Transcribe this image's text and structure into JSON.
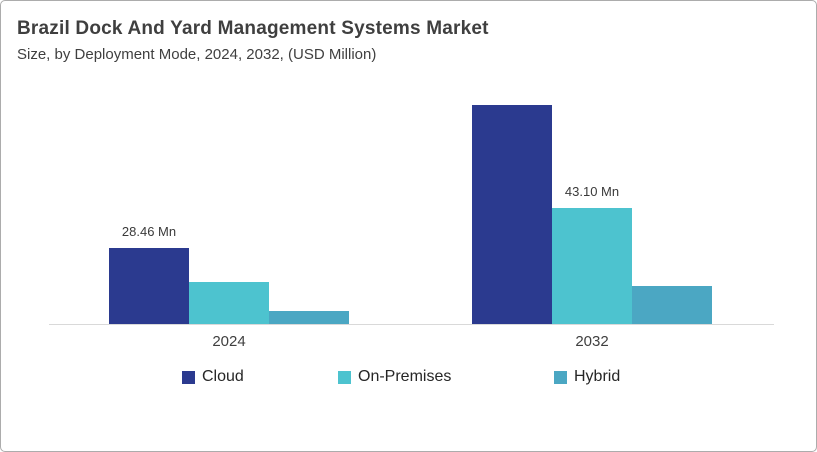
{
  "header": {
    "title": "Brazil Dock And Yard Management Systems Market",
    "subtitle": "Size, by Deployment Mode, 2024, 2032, (USD Million)"
  },
  "colors": {
    "cloud": "#2b3a8f",
    "on_premises": "#4dc3cf",
    "hybrid": "#4ba7c3",
    "axis_line": "#d9d9d9",
    "text": "#3f3f3f",
    "canvas_border": "#acacac",
    "background": "#ffffff"
  },
  "chart_data": {
    "type": "bar",
    "title": "Brazil Dock And Yard Management Systems Market",
    "subtitle": "Size, by Deployment Mode, 2024, 2032, (USD Million)",
    "unit": "USD Million",
    "categories": [
      "2024",
      "2032"
    ],
    "series": [
      {
        "name": "Cloud",
        "color": "#2b3a8f",
        "values": [
          28.46,
          81.7
        ],
        "labels": [
          "28.46 Mn",
          null
        ]
      },
      {
        "name": "On-Premises",
        "color": "#4dc3cf",
        "values": [
          15.7,
          43.1
        ],
        "labels": [
          null,
          "43.10 Mn"
        ]
      },
      {
        "name": "Hybrid",
        "color": "#4ba7c3",
        "values": [
          4.9,
          14.2
        ],
        "labels": [
          null,
          null
        ]
      }
    ],
    "value_labels_shown": [
      "28.46 Mn",
      "43.10 Mn"
    ],
    "ylim": [
      0,
      90
    ],
    "y_axis_visible": false,
    "x_axis_visible": true,
    "gridlines": false,
    "legend_position": "bottom"
  }
}
